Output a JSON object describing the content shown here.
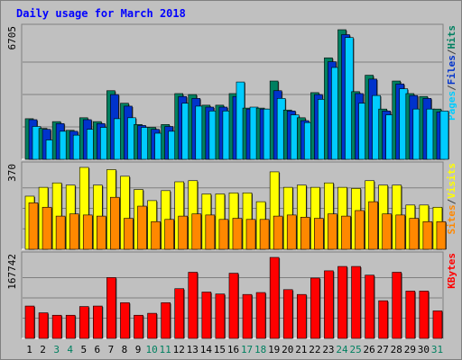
{
  "chart_data": {
    "type": "bar",
    "title": "Daily usage for March 2018",
    "categories": [
      "1",
      "2",
      "3",
      "4",
      "5",
      "6",
      "7",
      "8",
      "9",
      "10",
      "11",
      "12",
      "13",
      "14",
      "15",
      "16",
      "17",
      "18",
      "19",
      "20",
      "21",
      "22",
      "23",
      "24",
      "25",
      "26",
      "27",
      "28",
      "29",
      "30",
      "31"
    ],
    "weekend_days": [
      "3",
      "4",
      "10",
      "11",
      "17",
      "18",
      "24",
      "25",
      "31"
    ],
    "panels": [
      {
        "id": "top",
        "ymax_label": "6705",
        "ylim": [
          0,
          6705
        ],
        "right_labels": [
          {
            "text": "Pages",
            "color": "#00ccff"
          },
          {
            "text": "/",
            "color": "#404040"
          },
          {
            "text": "Files",
            "color": "#0033cc"
          },
          {
            "text": "/",
            "color": "#404040"
          },
          {
            "text": "Hits",
            "color": "#008060"
          }
        ],
        "series": [
          {
            "name": "Hits",
            "color": "#008060",
            "values": [
              2100,
              1600,
              1950,
              1500,
              2150,
              1950,
              3550,
              2900,
              1800,
              1650,
              1800,
              3400,
              3350,
              2800,
              2800,
              3400,
              2650,
              2650,
              4050,
              2550,
              2150,
              3450,
              5250,
              6705,
              3500,
              4350,
              2600,
              4050,
              3400,
              3250,
              2600
            ]
          },
          {
            "name": "Files",
            "color": "#0033cc",
            "values": [
              2050,
              1550,
              1850,
              1450,
              2050,
              1850,
              3350,
              2750,
              1750,
              1550,
              1700,
              3250,
              3150,
              2700,
              2700,
              3250,
              2600,
              2600,
              3550,
              2500,
              2000,
              3350,
              5050,
              6450,
              3400,
              4150,
              2500,
              3900,
              3300,
              3150,
              2450
            ]
          },
          {
            "name": "Pages",
            "color": "#00ccff",
            "values": [
              1700,
              1000,
              1450,
              1250,
              1550,
              1650,
              2100,
              2150,
              1650,
              1350,
              1450,
              2900,
              2750,
              2500,
              2500,
              4000,
              2700,
              2600,
              3150,
              2300,
              1900,
              3100,
              4750,
              6300,
              2900,
              3300,
              2300,
              3650,
              2600,
              2600,
              2500
            ]
          }
        ]
      },
      {
        "id": "middle",
        "ymax_label": "370",
        "ylim": [
          0,
          370
        ],
        "right_labels": [
          {
            "text": "Sites",
            "color": "#ff8800"
          },
          {
            "text": "/",
            "color": "#404040"
          },
          {
            "text": "Visits",
            "color": "#ffff00"
          }
        ],
        "series": [
          {
            "name": "Visits",
            "color": "#ffff00",
            "values": [
              240,
              280,
              300,
              290,
              370,
              290,
              360,
              330,
              270,
              220,
              265,
              305,
              310,
              250,
              250,
              255,
              255,
              215,
              350,
              280,
              290,
              280,
              300,
              280,
              275,
              310,
              290,
              290,
              200,
              200,
              190
            ]
          },
          {
            "name": "Sites",
            "color": "#ff8800",
            "values": [
              210,
              190,
              150,
              160,
              155,
              150,
              235,
              140,
              195,
              125,
              135,
              150,
              160,
              155,
              135,
              140,
              135,
              135,
              150,
              155,
              145,
              140,
              160,
              150,
              175,
              215,
              160,
              155,
              140,
              125,
              125
            ]
          }
        ]
      },
      {
        "id": "bottom",
        "ymax_label": "167742",
        "ylim": [
          0,
          167742
        ],
        "right_labels": [
          {
            "text": "KBytes",
            "color": "#ff0000"
          }
        ],
        "series": [
          {
            "name": "KBytes",
            "color": "#ff0000",
            "values": [
              67000,
              53000,
              48000,
              48000,
              66000,
              67000,
              126000,
              74000,
              48000,
              52000,
              74000,
              103000,
              137000,
              96000,
              92000,
              135000,
              91000,
              95000,
              167742,
              101000,
              91000,
              125000,
              140000,
              149000,
              149000,
              131000,
              78000,
              137000,
              98000,
              98000,
              57000
            ]
          }
        ]
      }
    ]
  }
}
